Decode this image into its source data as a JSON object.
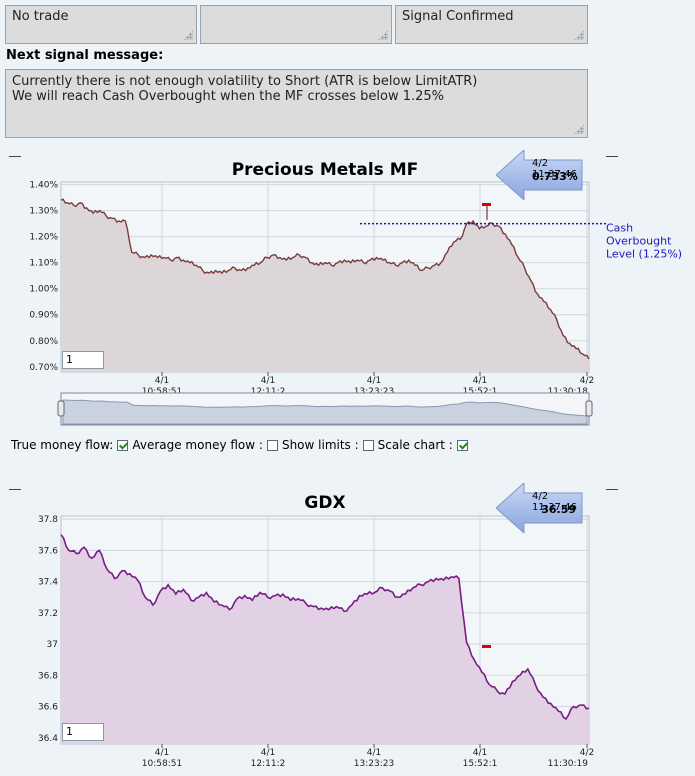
{
  "status_boxes": [
    "No trade",
    "",
    "Signal Confirmed"
  ],
  "next_signal": {
    "label": "Next signal message:",
    "message": "Currently there is not enough volatility to Short (ATR is below LimitATR)\nWe will reach Cash Overbought when the MF crosses below 1.25%"
  },
  "controls": {
    "true_money_flow": {
      "label": "True money flow:",
      "checked": true
    },
    "average_money_flow": {
      "label": "Average money flow :",
      "checked": false
    },
    "show_limits": {
      "label": "Show limits :",
      "checked": false
    },
    "scale_chart": {
      "label": "Scale chart :",
      "checked": true
    }
  },
  "colors": {
    "mf_line": "#7a3b3b",
    "mf_fill": "#ddd6d8",
    "gdx_line": "#7a1c86",
    "gdx_fill": "#e2d0e4",
    "level_line": "#1a1ab8",
    "arrow": "#9fb6e8"
  },
  "chart_data": [
    {
      "type": "area",
      "title": "Precious Metals MF",
      "callout": {
        "time": "4/2 11:37:46",
        "value": "0.733%"
      },
      "yticks": [
        "1.40%",
        "1.30%",
        "1.20%",
        "1.10%",
        "1.00%",
        "0.90%",
        "0.80%",
        "0.70%"
      ],
      "ylim": [
        0.68,
        1.41
      ],
      "xticks": [
        {
          "date": "4/1",
          "time": "10:58:51"
        },
        {
          "date": "4/1",
          "time": "12:11:2"
        },
        {
          "date": "4/1",
          "time": "13:23:23"
        },
        {
          "date": "4/1",
          "time": "15:52:1"
        },
        {
          "date": "4/2",
          "time": "11:30:18"
        }
      ],
      "zoom_value": "1",
      "annotation": {
        "text": [
          "Cash",
          "Overbought",
          "Level (1.25%)"
        ],
        "level": 1.25
      },
      "series": [
        {
          "values": [
            1.34,
            1.33,
            1.32,
            1.33,
            1.31,
            1.29,
            1.3,
            1.28,
            1.27,
            1.26,
            1.26,
            1.14,
            1.13,
            1.12,
            1.13,
            1.12,
            1.12,
            1.11,
            1.12,
            1.11,
            1.1,
            1.09,
            1.07,
            1.06,
            1.07,
            1.06,
            1.07,
            1.08,
            1.07,
            1.08,
            1.09,
            1.1,
            1.12,
            1.13,
            1.12,
            1.11,
            1.12,
            1.13,
            1.12,
            1.1,
            1.09,
            1.1,
            1.09,
            1.1,
            1.11,
            1.1,
            1.11,
            1.1,
            1.11,
            1.12,
            1.11,
            1.1,
            1.09,
            1.1,
            1.11,
            1.09,
            1.07,
            1.08,
            1.09,
            1.1,
            1.14,
            1.18,
            1.19,
            1.25,
            1.26,
            1.23,
            1.24,
            1.25,
            1.24,
            1.21,
            1.17,
            1.12,
            1.08,
            1.03,
            0.98,
            0.95,
            0.92,
            0.88,
            0.82,
            0.79,
            0.77,
            0.75,
            0.73
          ]
        }
      ]
    },
    {
      "type": "area",
      "title": "GDX",
      "callout": {
        "time": "4/2 11:37:46",
        "value": "36.59"
      },
      "yticks": [
        "37.8",
        "37.6",
        "37.4",
        "37.2",
        "37",
        "36.8",
        "36.6",
        "36.4"
      ],
      "ylim": [
        36.36,
        37.82
      ],
      "xticks": [
        {
          "date": "4/1",
          "time": "10:58:51"
        },
        {
          "date": "4/1",
          "time": "12:11:2"
        },
        {
          "date": "4/1",
          "time": "13:23:23"
        },
        {
          "date": "4/1",
          "time": "15:52:1"
        },
        {
          "date": "4/2",
          "time": "11:30:19"
        }
      ],
      "zoom_value": "1",
      "series": [
        {
          "values": [
            37.7,
            37.6,
            37.58,
            37.62,
            37.55,
            37.6,
            37.48,
            37.42,
            37.47,
            37.45,
            37.41,
            37.3,
            37.25,
            37.34,
            37.38,
            37.32,
            37.35,
            37.28,
            37.3,
            37.33,
            37.27,
            37.25,
            37.22,
            37.29,
            37.31,
            37.28,
            37.33,
            37.3,
            37.31,
            37.32,
            37.28,
            37.29,
            37.26,
            37.24,
            37.23,
            37.22,
            37.24,
            37.21,
            37.25,
            37.31,
            37.32,
            37.33,
            37.36,
            37.34,
            37.3,
            37.32,
            37.36,
            37.38,
            37.4,
            37.42,
            37.41,
            37.43,
            37.42,
            37.01,
            36.9,
            36.82,
            36.74,
            36.7,
            36.68,
            36.76,
            36.8,
            36.84,
            36.74,
            36.66,
            36.62,
            36.57,
            36.52,
            36.6,
            36.61,
            36.59
          ]
        }
      ]
    }
  ]
}
